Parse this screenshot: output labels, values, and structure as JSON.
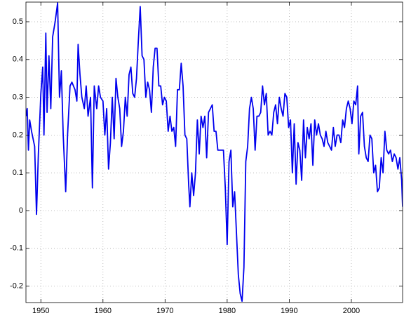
{
  "chart_data": {
    "type": "line",
    "color": "#0000ee",
    "grid": true,
    "xlim": [
      1947.6,
      2008.25
    ],
    "ylim": [
      -0.2435,
      0.552
    ],
    "xticks": [
      1950,
      1960,
      1970,
      1980,
      1990,
      2000
    ],
    "yticks": [
      -0.2,
      -0.1,
      0,
      0.1,
      0.2,
      0.3,
      0.4,
      0.5
    ],
    "x": [
      1947.6,
      1947.8,
      1948.0,
      1948.2,
      1948.5,
      1949.0,
      1949.3,
      1949.6,
      1950.0,
      1950.3,
      1950.5,
      1950.8,
      1951.0,
      1951.3,
      1951.6,
      1951.9,
      1952.3,
      1952.7,
      1953.0,
      1953.3,
      1953.6,
      1954.0,
      1954.3,
      1954.7,
      1955.0,
      1955.5,
      1955.8,
      1956.0,
      1956.3,
      1956.6,
      1957.0,
      1957.3,
      1957.6,
      1958.0,
      1958.3,
      1958.6,
      1959.0,
      1959.3,
      1959.6,
      1960.0,
      1960.3,
      1960.6,
      1960.9,
      1961.2,
      1961.5,
      1961.8,
      1962.1,
      1962.4,
      1962.7,
      1963.0,
      1963.3,
      1963.6,
      1963.9,
      1964.2,
      1964.5,
      1964.8,
      1965.1,
      1965.4,
      1965.7,
      1966.0,
      1966.3,
      1966.6,
      1966.9,
      1967.2,
      1967.5,
      1967.8,
      1968.1,
      1968.4,
      1968.7,
      1969.0,
      1969.3,
      1969.6,
      1969.9,
      1970.2,
      1970.5,
      1970.8,
      1971.1,
      1971.4,
      1971.7,
      1972.0,
      1972.3,
      1972.6,
      1972.9,
      1973.2,
      1973.5,
      1973.8,
      1974.0,
      1974.3,
      1974.6,
      1974.9,
      1975.2,
      1975.5,
      1975.8,
      1976.1,
      1976.4,
      1976.7,
      1977.0,
      1977.3,
      1977.6,
      1977.9,
      1978.2,
      1978.5,
      1978.8,
      1979.1,
      1979.4,
      1979.7,
      1980.0,
      1980.3,
      1980.6,
      1980.9,
      1981.2,
      1981.5,
      1981.8,
      1982.1,
      1982.4,
      1982.7,
      1983.0,
      1983.3,
      1983.6,
      1983.9,
      1984.2,
      1984.5,
      1984.8,
      1985.1,
      1985.4,
      1985.7,
      1986.0,
      1986.3,
      1986.6,
      1986.9,
      1987.2,
      1987.5,
      1987.8,
      1988.1,
      1988.4,
      1988.7,
      1989.0,
      1989.3,
      1989.6,
      1989.9,
      1990.2,
      1990.5,
      1990.8,
      1991.1,
      1991.4,
      1991.7,
      1992.0,
      1992.3,
      1992.6,
      1992.9,
      1993.2,
      1993.5,
      1993.8,
      1994.1,
      1994.4,
      1994.7,
      1995.0,
      1995.3,
      1995.6,
      1995.9,
      1996.2,
      1996.5,
      1996.8,
      1997.1,
      1997.4,
      1997.7,
      1998.0,
      1998.3,
      1998.6,
      1998.9,
      1999.2,
      1999.5,
      1999.8,
      2000.1,
      2000.4,
      2000.7,
      2001.0,
      2001.2,
      2001.5,
      2001.8,
      2002.1,
      2002.4,
      2002.7,
      2003.0,
      2003.3,
      2003.6,
      2003.9,
      2004.2,
      2004.5,
      2004.8,
      2005.1,
      2005.4,
      2005.7,
      2006.0,
      2006.3,
      2006.6,
      2006.9,
      2007.2,
      2007.5,
      2007.8,
      2008.1,
      2008.25
    ],
    "values": [
      0.25,
      0.27,
      0.16,
      0.24,
      0.21,
      0.17,
      -0.01,
      0.15,
      0.31,
      0.38,
      0.2,
      0.47,
      0.26,
      0.41,
      0.27,
      0.46,
      0.5,
      0.55,
      0.3,
      0.37,
      0.2,
      0.05,
      0.2,
      0.33,
      0.34,
      0.32,
      0.29,
      0.44,
      0.36,
      0.3,
      0.27,
      0.33,
      0.25,
      0.3,
      0.06,
      0.33,
      0.27,
      0.33,
      0.3,
      0.29,
      0.2,
      0.27,
      0.11,
      0.18,
      0.3,
      0.19,
      0.35,
      0.3,
      0.27,
      0.17,
      0.21,
      0.3,
      0.25,
      0.36,
      0.38,
      0.31,
      0.3,
      0.35,
      0.45,
      0.54,
      0.41,
      0.4,
      0.3,
      0.34,
      0.32,
      0.26,
      0.38,
      0.43,
      0.43,
      0.33,
      0.33,
      0.28,
      0.3,
      0.29,
      0.21,
      0.25,
      0.21,
      0.22,
      0.17,
      0.32,
      0.32,
      0.39,
      0.33,
      0.2,
      0.19,
      0.07,
      0.01,
      0.1,
      0.04,
      0.1,
      0.24,
      0.15,
      0.25,
      0.22,
      0.25,
      0.14,
      0.26,
      0.27,
      0.28,
      0.21,
      0.21,
      0.16,
      0.16,
      0.16,
      0.16,
      0.06,
      -0.09,
      0.13,
      0.16,
      0.01,
      0.05,
      -0.06,
      -0.17,
      -0.22,
      -0.24,
      -0.15,
      0.13,
      0.17,
      0.27,
      0.3,
      0.27,
      0.16,
      0.25,
      0.25,
      0.26,
      0.33,
      0.28,
      0.31,
      0.2,
      0.21,
      0.2,
      0.26,
      0.28,
      0.23,
      0.3,
      0.27,
      0.25,
      0.31,
      0.3,
      0.22,
      0.24,
      0.1,
      0.23,
      0.07,
      0.18,
      0.16,
      0.08,
      0.24,
      0.14,
      0.22,
      0.19,
      0.23,
      0.12,
      0.24,
      0.2,
      0.23,
      0.2,
      0.19,
      0.17,
      0.21,
      0.18,
      0.17,
      0.16,
      0.22,
      0.17,
      0.2,
      0.2,
      0.18,
      0.24,
      0.22,
      0.27,
      0.29,
      0.27,
      0.23,
      0.29,
      0.28,
      0.33,
      0.15,
      0.25,
      0.26,
      0.17,
      0.14,
      0.13,
      0.2,
      0.19,
      0.1,
      0.12,
      0.05,
      0.06,
      0.14,
      0.1,
      0.21,
      0.16,
      0.15,
      0.16,
      0.13,
      0.15,
      0.14,
      0.11,
      0.14,
      0.08,
      0.01
    ]
  }
}
